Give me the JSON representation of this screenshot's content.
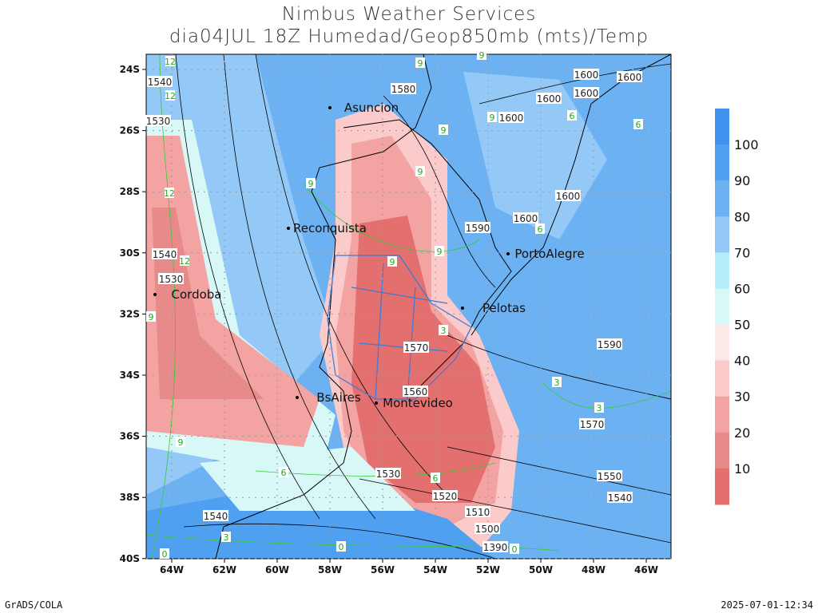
{
  "header": {
    "title": "Nimbus Weather Services",
    "subtitle": "dia04JUL 18Z Humedad/Geop850mb (mts)/Temp"
  },
  "map": {
    "lat_labels": [
      "24S",
      "26S",
      "28S",
      "30S",
      "32S",
      "34S",
      "36S",
      "38S",
      "40S"
    ],
    "lon_labels": [
      "64W",
      "62W",
      "60W",
      "58W",
      "56W",
      "54W",
      "52W",
      "50W",
      "48W",
      "46W"
    ],
    "cities": [
      "Asuncion",
      "Reconquista",
      "PortoAlegre",
      "Cordoba",
      "Pelotas",
      "BsAires",
      "Montevideo"
    ],
    "geopotential_labels": [
      "1580",
      "1600",
      "1600",
      "1600",
      "1600",
      "1600",
      "1600",
      "1600",
      "1590",
      "1590",
      "1570",
      "1560",
      "1570",
      "1550",
      "1540",
      "1530",
      "1520",
      "1510",
      "1500",
      "1390",
      "1540",
      "1540",
      "1530",
      "1540",
      "1530"
    ],
    "temperature_labels": [
      "12",
      "12",
      "12",
      "12",
      "9",
      "9",
      "9",
      "9",
      "9",
      "9",
      "9",
      "9",
      "9",
      "9",
      "6",
      "6",
      "6",
      "6",
      "6",
      "3",
      "3",
      "3",
      "3",
      "0",
      "0",
      "0"
    ]
  },
  "colorbar": {
    "labels": [
      "100",
      "90",
      "80",
      "70",
      "60",
      "50",
      "40",
      "30",
      "20",
      "10"
    ]
  },
  "footer": {
    "left": "GrADS/COLA",
    "right": "2025-07-01-12:34"
  }
}
